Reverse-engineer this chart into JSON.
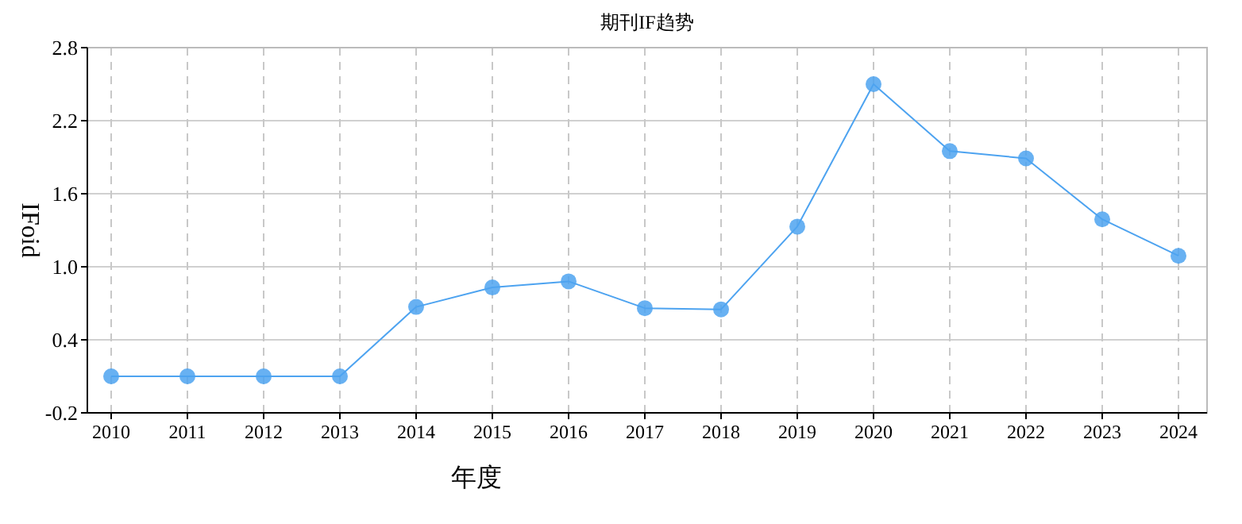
{
  "chart_data": {
    "type": "line",
    "title": "期刊IF趋势",
    "xlabel": "年度",
    "ylabel": "IFoid",
    "categories": [
      "2010",
      "2011",
      "2012",
      "2013",
      "2014",
      "2015",
      "2016",
      "2017",
      "2018",
      "2019",
      "2020",
      "2021",
      "2022",
      "2023",
      "2024"
    ],
    "series": [
      {
        "color": "#4da3f0",
        "values": [
          0.1,
          0.1,
          0.1,
          0.1,
          0.67,
          0.83,
          0.88,
          0.66,
          0.65,
          1.33,
          2.5,
          1.95,
          1.89,
          1.39,
          1.09
        ]
      }
    ],
    "ylim": [
      -0.2,
      2.8
    ],
    "yticks": [
      -0.2,
      0.4,
      {
        "value": 1,
        "label": "1.0"
      },
      1.6,
      2.2,
      2.8
    ],
    "grid": true,
    "marker": "circle",
    "line_style": "solid"
  }
}
